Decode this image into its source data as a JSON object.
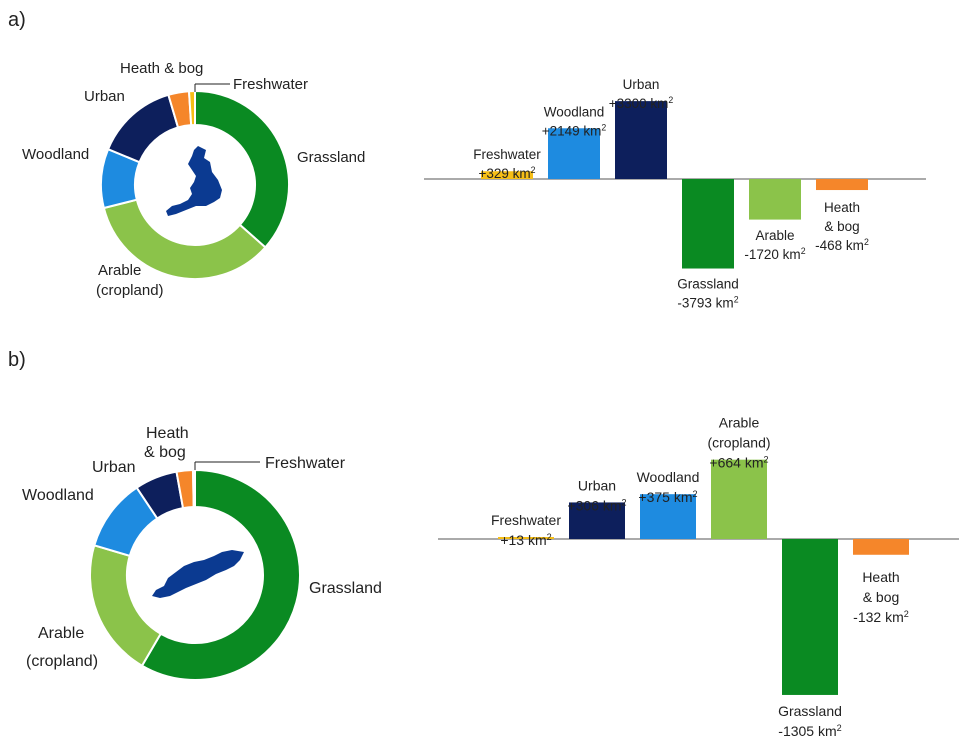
{
  "panels": {
    "a": {
      "label": "a)",
      "sup": "2",
      "legend": {
        "heath_bog": "Heath & bog",
        "freshwater": "Freshwater",
        "urban": "Urban",
        "woodland": "Woodland",
        "grassland": "Grassland",
        "arable_1": "Arable",
        "arable_2": "(cropland)"
      }
    },
    "b": {
      "label": "b)",
      "sup": "2",
      "legend": {
        "heath_1": "Heath",
        "heath_2": "& bog",
        "freshwater": "Freshwater",
        "urban": "Urban",
        "woodland": "Woodland",
        "grassland": "Grassland",
        "arable_1": "Arable",
        "arable_2": "(cropland)"
      }
    }
  },
  "colors": {
    "grassland": "#0a8a22",
    "arable": "#8bc34a",
    "woodland": "#1e8be0",
    "urban": "#0d1f5c",
    "heath_bog": "#f5862a",
    "freshwater": "#f6be16",
    "map": "#0b3a91"
  },
  "chart_data": [
    {
      "id": "a-donut",
      "type": "pie",
      "categories": [
        "Grassland",
        "Arable (cropland)",
        "Woodland",
        "Urban",
        "Heath & bog",
        "Freshwater"
      ],
      "values": [
        36,
        34,
        10,
        14,
        3.5,
        1
      ]
    },
    {
      "id": "a-change",
      "type": "bar",
      "ylim": [
        -4000,
        3500
      ],
      "bars": [
        {
          "name": "Freshwater",
          "value": 329,
          "name_lines": [
            "Freshwater"
          ],
          "value_label": "+329 km",
          "color": "freshwater"
        },
        {
          "name": "Woodland",
          "value": 2149,
          "name_lines": [
            "Woodland"
          ],
          "value_label": "+2149 km",
          "color": "woodland"
        },
        {
          "name": "Urban",
          "value": 3300,
          "name_lines": [
            "Urban"
          ],
          "value_label": "+3300 km",
          "color": "urban"
        },
        {
          "name": "Grassland",
          "value": -3793,
          "name_lines": [
            "Grassland"
          ],
          "value_label": "-3793 km",
          "color": "grassland"
        },
        {
          "name": "Arable",
          "value": -1720,
          "name_lines": [
            "Arable"
          ],
          "value_label": "-1720 km",
          "color": "arable"
        },
        {
          "name": "Heath & bog",
          "value": -468,
          "name_lines": [
            "Heath",
            "& bog"
          ],
          "value_label": "-468 km",
          "color": "heath_bog"
        }
      ]
    },
    {
      "id": "b-donut",
      "type": "pie",
      "categories": [
        "Grassland",
        "Arable (cropland)",
        "Woodland",
        "Urban",
        "Heath & bog",
        "Freshwater"
      ],
      "values": [
        58,
        21,
        11,
        6.5,
        2.5,
        0.3
      ]
    },
    {
      "id": "b-change",
      "type": "bar",
      "ylim": [
        -1400,
        750
      ],
      "bars": [
        {
          "name": "Freshwater",
          "value": 13,
          "name_lines": [
            "Freshwater"
          ],
          "value_label": "+13 km",
          "color": "freshwater"
        },
        {
          "name": "Urban",
          "value": 306,
          "name_lines": [
            "Urban"
          ],
          "value_label": "+306 km",
          "color": "urban"
        },
        {
          "name": "Woodland",
          "value": 375,
          "name_lines": [
            "Woodland"
          ],
          "value_label": "+375 km",
          "color": "woodland"
        },
        {
          "name": "Arable (cropland)",
          "value": 664,
          "name_lines": [
            "Arable",
            "(cropland)"
          ],
          "value_label": "+664 km",
          "color": "arable"
        },
        {
          "name": "Grassland",
          "value": -1305,
          "name_lines": [
            "Grassland"
          ],
          "value_label": "-1305 km",
          "color": "grassland"
        },
        {
          "name": "Heath & bog",
          "value": -132,
          "name_lines": [
            "Heath",
            "& bog"
          ],
          "value_label": "-132 km",
          "color": "heath_bog"
        }
      ]
    }
  ]
}
